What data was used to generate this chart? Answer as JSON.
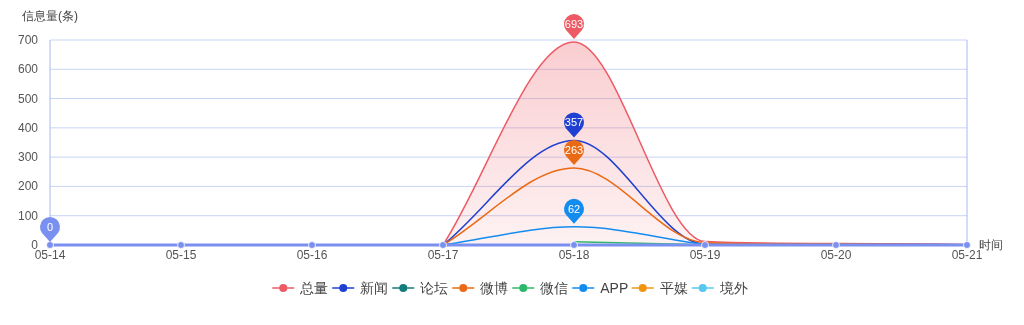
{
  "chart_data": {
    "type": "line",
    "ylabel": "信息量(条)",
    "xlabel": "时间",
    "categories": [
      "05-14",
      "05-15",
      "05-16",
      "05-17",
      "05-18",
      "05-19",
      "05-20",
      "05-21"
    ],
    "ylim": [
      0,
      700
    ],
    "yticks": [
      0,
      100,
      200,
      300,
      400,
      500,
      600,
      700
    ],
    "grid": "y",
    "legend": "bottom",
    "line_style": "solid",
    "series": [
      {
        "name": "总量",
        "color": "#ee5a64",
        "type": "area",
        "values": [
          null,
          null,
          null,
          0,
          693,
          12,
          5,
          2
        ]
      },
      {
        "name": "新闻",
        "color": "#1f40d0",
        "type": "line",
        "values": [
          null,
          null,
          null,
          0,
          357,
          3,
          2,
          1
        ]
      },
      {
        "name": "论坛",
        "color": "#137c7c",
        "values": [
          null,
          null,
          null,
          null,
          null,
          null,
          null,
          null
        ]
      },
      {
        "name": "微博",
        "color": "#ea6a14",
        "type": "line",
        "values": [
          null,
          null,
          null,
          0,
          263,
          8,
          3,
          1
        ]
      },
      {
        "name": "微信",
        "color": "#2eb86a",
        "values": [
          null,
          null,
          null,
          null,
          11,
          1,
          null,
          null
        ]
      },
      {
        "name": "APP",
        "color": "#138cf0",
        "type": "line",
        "values": [
          null,
          null,
          null,
          0,
          62,
          1,
          null,
          null
        ]
      },
      {
        "name": "平媒",
        "color": "#f0960e",
        "values": [
          null,
          null,
          null,
          null,
          null,
          null,
          null,
          null
        ]
      },
      {
        "name": "境外",
        "color": "#55c8f0",
        "values": [
          null,
          null,
          null,
          null,
          null,
          null,
          null,
          null
        ]
      },
      {
        "color": "#7a90f0",
        "marker": "circle",
        "values": [
          0,
          0,
          0,
          0,
          0,
          0,
          0,
          0
        ]
      }
    ],
    "annotations": [
      {
        "text": "693",
        "x": "05-18",
        "y": 693
      },
      {
        "text": "357",
        "x": "05-18",
        "y": 357
      },
      {
        "text": "263",
        "x": "05-18",
        "y": 263
      },
      {
        "text": "62",
        "x": "05-18",
        "y": 62
      },
      {
        "text": "0",
        "x": "05-14",
        "y": 0
      }
    ]
  }
}
